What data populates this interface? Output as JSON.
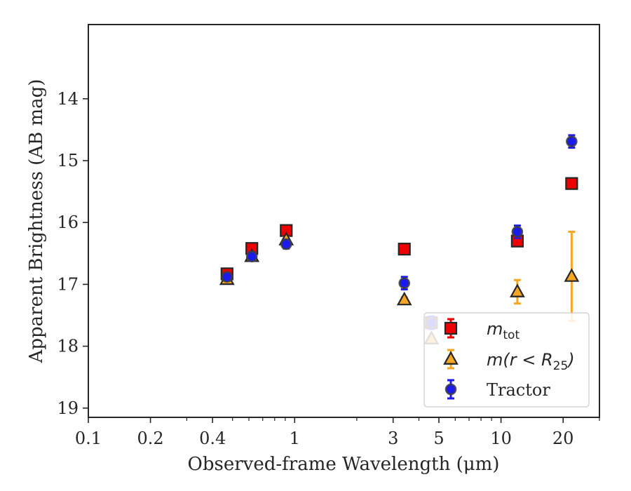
{
  "chart_data": {
    "type": "scatter",
    "title": "",
    "xlabel": "Observed-frame Wavelength (μm)",
    "ylabel": "Apparent Brightness (AB mag)",
    "xscale": "log",
    "xlim": [
      0.1,
      30
    ],
    "ylim": [
      19.15,
      12.8
    ],
    "y_inverted": true,
    "grid": false,
    "legend_position": "lower-right",
    "x_ticks": [
      {
        "value": 0.1,
        "label": "0.1"
      },
      {
        "value": 0.2,
        "label": "0.2"
      },
      {
        "value": 0.4,
        "label": "0.4"
      },
      {
        "value": 1,
        "label": "1"
      },
      {
        "value": 3,
        "label": "3"
      },
      {
        "value": 5,
        "label": "5"
      },
      {
        "value": 10,
        "label": "10"
      },
      {
        "value": 20,
        "label": "20"
      }
    ],
    "y_ticks": [
      {
        "value": 14,
        "label": "14"
      },
      {
        "value": 15,
        "label": "15"
      },
      {
        "value": 16,
        "label": "16"
      },
      {
        "value": 17,
        "label": "17"
      },
      {
        "value": 18,
        "label": "18"
      },
      {
        "value": 19,
        "label": "19"
      }
    ],
    "series": [
      {
        "key": "mtot",
        "label_main": "m",
        "label_sub": "tot",
        "marker": "square",
        "color": "#ee0000",
        "errcolor": "#ee0000",
        "points": [
          {
            "x": 0.47,
            "y": 16.83,
            "err": 0.06
          },
          {
            "x": 0.62,
            "y": 16.42,
            "err": 0.06
          },
          {
            "x": 0.91,
            "y": 16.13,
            "err": 0.06
          },
          {
            "x": 3.4,
            "y": 16.43,
            "err": 0.06
          },
          {
            "x": 4.6,
            "y": 17.62,
            "err": 0.08
          },
          {
            "x": 12,
            "y": 16.3,
            "err": 0.07
          },
          {
            "x": 22,
            "y": 15.37,
            "err": 0.07
          }
        ]
      },
      {
        "key": "mr25",
        "label_main": "m(r < R",
        "label_sub": "25",
        "label_after": ")",
        "marker": "triangle",
        "color": "#f5a623",
        "errcolor": "#f5a623",
        "points": [
          {
            "x": 0.47,
            "y": 16.92,
            "err": 0.04
          },
          {
            "x": 0.62,
            "y": 16.55,
            "err": 0.04
          },
          {
            "x": 0.91,
            "y": 16.28,
            "err": 0.04
          },
          {
            "x": 3.4,
            "y": 17.25,
            "err": 0.04
          },
          {
            "x": 4.6,
            "y": 17.88,
            "err": 0.05
          },
          {
            "x": 12,
            "y": 17.12,
            "err": 0.19
          },
          {
            "x": 22,
            "y": 16.87,
            "err": 0.72
          }
        ]
      },
      {
        "key": "tractor",
        "label_main": "Tractor",
        "marker": "circle",
        "color": "#1a1aee",
        "errcolor": "#1a1aee",
        "points": [
          {
            "x": 0.47,
            "y": 16.88,
            "err": 0.05
          },
          {
            "x": 0.62,
            "y": 16.55,
            "err": 0.07
          },
          {
            "x": 0.91,
            "y": 16.35,
            "err": 0.07
          },
          {
            "x": 3.4,
            "y": 16.98,
            "err": 0.1
          },
          {
            "x": 4.6,
            "y": 17.62,
            "err": 0.1
          },
          {
            "x": 12,
            "y": 16.15,
            "err": 0.1
          },
          {
            "x": 22,
            "y": 14.69,
            "err": 0.1
          }
        ]
      }
    ]
  }
}
